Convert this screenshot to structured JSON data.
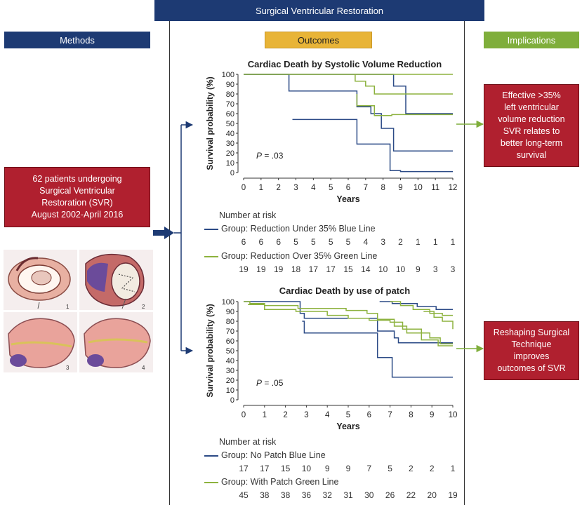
{
  "header": {
    "title": "Surgical Ventricular Restoration"
  },
  "methods": {
    "label": "Methods",
    "box_lines": [
      "62 patients undergoing",
      "Surgical Ventricular",
      "Restoration (SVR)",
      "August 2002-April 2016"
    ],
    "figure_labels": [
      "1",
      "2",
      "3",
      "4"
    ]
  },
  "outcomes": {
    "label": "Outcomes"
  },
  "implications": {
    "label": "Implications",
    "box1_lines": [
      "Effective >35%",
      "left ventricular",
      "volume reduction",
      "SVR relates to",
      "better long-term",
      "survival"
    ],
    "box2_lines": [
      "Reshaping Surgical",
      "Technique",
      "improves",
      "outcomes of SVR"
    ]
  },
  "colors": {
    "navy": "#1d3a73",
    "orange": "#e8b437",
    "green": "#7fae3b",
    "red": "#b0202f",
    "blue_line": "#2b4a86",
    "green_line": "#8db23e"
  },
  "chart_data": [
    {
      "type": "line",
      "title": "Cardiac Death by Systolic Volume Reduction",
      "xlabel": "Years",
      "ylabel": "Survival probability (%)",
      "xlim": [
        0,
        12
      ],
      "ylim": [
        0,
        100
      ],
      "xticks": [
        "0",
        "1",
        "2",
        "3",
        "4",
        "5",
        "6",
        "7",
        "8",
        "9",
        "10",
        "11",
        "12"
      ],
      "yticks": [
        "0",
        "10",
        "20",
        "30",
        "40",
        "50",
        "60",
        "70",
        "80",
        "90",
        "100"
      ],
      "annotation": {
        "p_label": "P",
        "p_value": " = .03"
      },
      "series": [
        {
          "name": "Group: Reduction Under 35% Blue Line",
          "color": "blue",
          "lines": [
            [
              [
                0,
                100
              ],
              [
                2.6,
                100
              ],
              [
                2.6,
                83
              ],
              [
                6.5,
                83
              ],
              [
                6.5,
                67
              ],
              [
                7.3,
                67
              ],
              [
                7.3,
                60
              ],
              [
                7.9,
                60
              ],
              [
                7.9,
                45
              ],
              [
                8.6,
                45
              ],
              [
                8.6,
                22
              ],
              [
                9.4,
                22
              ],
              [
                9.4,
                22
              ],
              [
                12,
                22
              ]
            ],
            [
              [
                0,
                100
              ],
              [
                8.6,
                100
              ],
              [
                8.6,
                88
              ],
              [
                9.3,
                88
              ],
              [
                9.3,
                60
              ],
              [
                12,
                60
              ]
            ],
            [
              [
                2.8,
                54
              ],
              [
                6.5,
                54
              ],
              [
                6.5,
                29
              ],
              [
                8.4,
                29
              ],
              [
                8.4,
                2
              ],
              [
                9.0,
                2
              ],
              [
                9.0,
                1
              ],
              [
                12,
                1
              ]
            ]
          ]
        },
        {
          "name": "Group: Reduction Over 35% Green Line",
          "color": "green",
          "lines": [
            [
              [
                0,
                100
              ],
              [
                12,
                100
              ]
            ],
            [
              [
                6.4,
                100
              ],
              [
                6.4,
                93
              ],
              [
                7.0,
                93
              ],
              [
                7.0,
                88
              ],
              [
                7.5,
                88
              ],
              [
                7.5,
                80
              ],
              [
                12,
                80
              ]
            ],
            [
              [
                6.5,
                80
              ],
              [
                6.5,
                68
              ],
              [
                7.5,
                68
              ],
              [
                7.5,
                58
              ],
              [
                8.5,
                58
              ],
              [
                8.5,
                59
              ],
              [
                12,
                59
              ]
            ]
          ]
        }
      ],
      "risk_table": {
        "heading": "Number at risk",
        "groups": [
          {
            "label": "Group: Reduction Under 35% Blue Line",
            "color": "blue",
            "values": [
              "6",
              "6",
              "6",
              "5",
              "5",
              "5",
              "5",
              "4",
              "3",
              "2",
              "1",
              "1",
              "1"
            ]
          },
          {
            "label": "Group: Reduction Over 35% Green Line",
            "color": "green",
            "values": [
              "19",
              "19",
              "19",
              "18",
              "17",
              "17",
              "15",
              "14",
              "10",
              "10",
              "9",
              "3",
              "3"
            ]
          }
        ]
      }
    },
    {
      "type": "line",
      "title": "Cardiac Death by use of patch",
      "xlabel": "Years",
      "ylabel": "Survival probability (%)",
      "xlim": [
        0,
        10
      ],
      "ylim": [
        0,
        100
      ],
      "xticks": [
        "0",
        "1",
        "2",
        "3",
        "4",
        "5",
        "6",
        "7",
        "8",
        "9",
        "10"
      ],
      "yticks": [
        "0",
        "10",
        "20",
        "30",
        "40",
        "50",
        "60",
        "70",
        "80",
        "90",
        "100"
      ],
      "annotation": {
        "p_label": "P",
        "p_value": " = .05"
      },
      "series": [
        {
          "name": "Group: No Patch Blue Line",
          "color": "blue",
          "lines": [
            [
              [
                0,
                100
              ],
              [
                2.7,
                100
              ],
              [
                2.7,
                88
              ],
              [
                2.9,
                88
              ],
              [
                2.9,
                83
              ],
              [
                6.4,
                83
              ],
              [
                6.4,
                70
              ],
              [
                7.2,
                70
              ],
              [
                7.2,
                63
              ],
              [
                7.4,
                63
              ],
              [
                7.4,
                58
              ],
              [
                10,
                58
              ]
            ],
            [
              [
                2.8,
                80
              ],
              [
                2.9,
                80
              ],
              [
                2.9,
                68
              ],
              [
                6.4,
                68
              ],
              [
                6.4,
                43
              ],
              [
                7.1,
                43
              ],
              [
                7.1,
                23
              ],
              [
                10,
                23
              ]
            ],
            [
              [
                6.5,
                100
              ],
              [
                7.1,
                100
              ],
              [
                7.1,
                98
              ],
              [
                8.3,
                98
              ],
              [
                8.3,
                95
              ],
              [
                9.2,
                95
              ],
              [
                9.2,
                92
              ],
              [
                10,
                92
              ]
            ]
          ]
        },
        {
          "name": "Group: With Patch Green Line",
          "color": "green",
          "lines": [
            [
              [
                0,
                100
              ],
              [
                0.3,
                100
              ],
              [
                0.3,
                98
              ],
              [
                1.0,
                98
              ],
              [
                1.0,
                96
              ],
              [
                2.6,
                96
              ],
              [
                2.6,
                93
              ],
              [
                4.9,
                93
              ],
              [
                4.9,
                91
              ],
              [
                5.9,
                91
              ],
              [
                5.9,
                88
              ],
              [
                6.4,
                88
              ],
              [
                6.4,
                82
              ],
              [
                7.2,
                82
              ],
              [
                7.2,
                75
              ],
              [
                7.8,
                75
              ],
              [
                7.8,
                68
              ],
              [
                8.9,
                68
              ],
              [
                8.9,
                63
              ],
              [
                9.4,
                63
              ],
              [
                9.4,
                57
              ],
              [
                10,
                57
              ]
            ],
            [
              [
                0.2,
                97
              ],
              [
                1.0,
                97
              ],
              [
                1.0,
                92
              ],
              [
                2.5,
                92
              ],
              [
                2.5,
                90
              ],
              [
                4.0,
                90
              ],
              [
                4.0,
                86
              ],
              [
                5.0,
                86
              ],
              [
                5.0,
                83
              ],
              [
                6.0,
                83
              ],
              [
                6.0,
                81
              ],
              [
                7.0,
                81
              ],
              [
                7.0,
                79
              ],
              [
                7.6,
                79
              ],
              [
                7.6,
                72
              ],
              [
                8.5,
                72
              ],
              [
                8.5,
                61
              ],
              [
                9.3,
                61
              ],
              [
                9.3,
                55
              ],
              [
                10,
                55
              ]
            ],
            [
              [
                7.0,
                100
              ],
              [
                7.5,
                100
              ],
              [
                7.5,
                96
              ],
              [
                8.1,
                96
              ],
              [
                8.1,
                92
              ],
              [
                8.9,
                92
              ],
              [
                8.9,
                88
              ],
              [
                9.5,
                88
              ],
              [
                9.5,
                86
              ],
              [
                10,
                86
              ]
            ],
            [
              [
                8.6,
                90
              ],
              [
                9.1,
                90
              ],
              [
                9.1,
                84
              ],
              [
                9.5,
                84
              ],
              [
                9.5,
                80
              ],
              [
                10,
                80
              ],
              [
                10,
                72
              ]
            ]
          ]
        }
      ],
      "risk_table": {
        "heading": "Number at risk",
        "groups": [
          {
            "label": "Group: No Patch Blue Line",
            "color": "blue",
            "values": [
              "17",
              "17",
              "15",
              "10",
              "9",
              "9",
              "7",
              "5",
              "2",
              "2",
              "1"
            ]
          },
          {
            "label": "Group: With Patch Green Line",
            "color": "green",
            "values": [
              "45",
              "38",
              "38",
              "36",
              "32",
              "31",
              "30",
              "26",
              "22",
              "20",
              "19"
            ]
          }
        ]
      }
    }
  ]
}
